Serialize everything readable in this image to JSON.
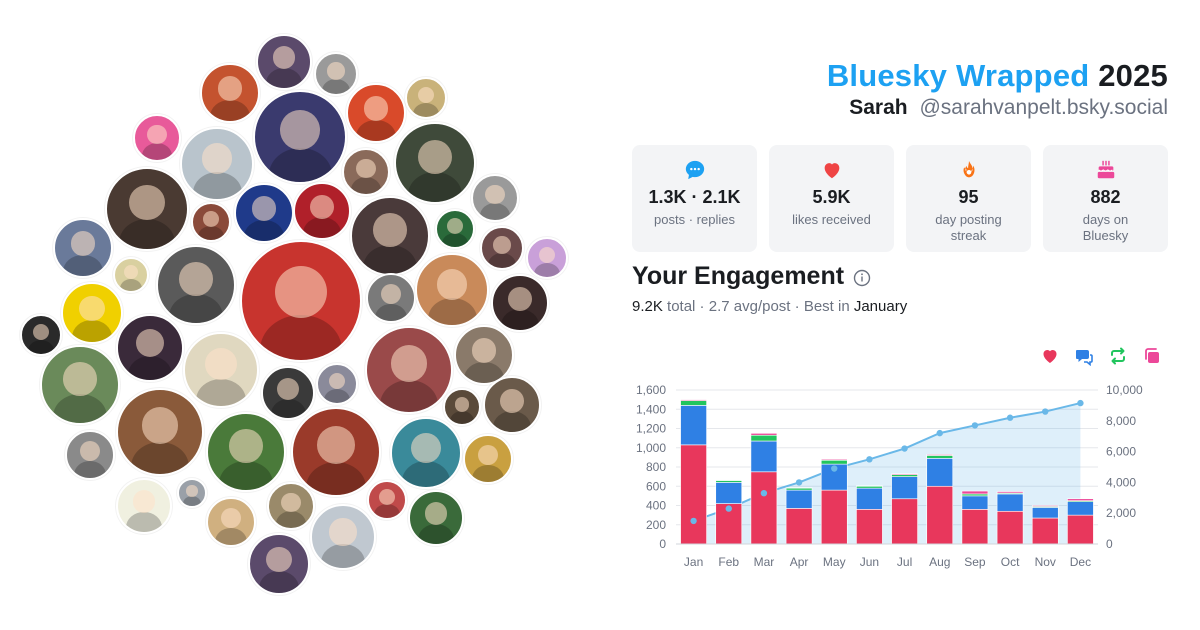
{
  "header": {
    "brand": "Bluesky Wrapped",
    "year": "2025",
    "name": "Sarah",
    "handle": "@sarahvanpelt.bsky.social"
  },
  "stats": [
    {
      "icon": "chat-bubble-icon",
      "value": "1.3K · 2.1K",
      "label": "posts · replies",
      "color": "#1da1f2"
    },
    {
      "icon": "heart-icon",
      "value": "5.9K",
      "label": "likes received",
      "color": "#ef4444"
    },
    {
      "icon": "flame-icon",
      "value": "95",
      "label": "day posting streak",
      "color": "#f97316"
    },
    {
      "icon": "cake-icon",
      "value": "882",
      "label": "days on Bluesky",
      "color": "#ec4899"
    }
  ],
  "engagement": {
    "title": "Your Engagement",
    "total": "9.2K",
    "total_word": "total",
    "avg": "2.7 avg/post",
    "best_prefix": "Best in",
    "best_month": "January",
    "legend": [
      {
        "icon": "heart-icon",
        "color": "#e8375c"
      },
      {
        "icon": "reply-icon",
        "color": "#2f80e4"
      },
      {
        "icon": "repost-icon",
        "color": "#22c55e"
      },
      {
        "icon": "quote-icon",
        "color": "#ec4899"
      }
    ]
  },
  "chart_data": {
    "type": "bar",
    "categories": [
      "Jan",
      "Feb",
      "Mar",
      "Apr",
      "May",
      "Jun",
      "Jul",
      "Aug",
      "Sep",
      "Oct",
      "Nov",
      "Dec"
    ],
    "series": [
      {
        "color": "#e8375c",
        "values": [
          1030,
          420,
          750,
          370,
          560,
          360,
          470,
          600,
          360,
          340,
          270,
          300
        ]
      },
      {
        "color": "#2f80e4",
        "values": [
          410,
          220,
          320,
          190,
          270,
          220,
          230,
          290,
          140,
          180,
          110,
          140
        ]
      },
      {
        "color": "#22c55e",
        "values": [
          50,
          20,
          60,
          20,
          40,
          20,
          20,
          30,
          20,
          10,
          10,
          10
        ]
      },
      {
        "color": "#ec4899",
        "values": [
          10,
          5,
          20,
          5,
          10,
          5,
          10,
          10,
          30,
          15,
          10,
          20
        ]
      }
    ],
    "line": {
      "color": "#6ab8e8",
      "values": [
        1500,
        2300,
        3300,
        4000,
        4900,
        5500,
        6200,
        7200,
        7700,
        8200,
        8600,
        9150
      ]
    },
    "ylim": [
      0,
      1600
    ],
    "yticks": [
      "0",
      "200",
      "400",
      "600",
      "800",
      "1,000",
      "1,200",
      "1,400",
      "1,600"
    ],
    "y2lim": [
      0,
      10000
    ],
    "y2ticks": [
      "0",
      "2,000",
      "4,000",
      "6,000",
      "8,000",
      "10,000"
    ],
    "grid": true
  },
  "collage": {
    "avatars": [
      {
        "name": "avatar-1",
        "color": "#5b4a6b"
      },
      {
        "name": "avatar-2",
        "color": "#9a9a9a"
      },
      {
        "name": "avatar-3",
        "color": "#c9b27a"
      },
      {
        "name": "avatar-4",
        "color": "#c4532f"
      },
      {
        "name": "avatar-5",
        "color": "#3a3a6e"
      },
      {
        "name": "avatar-6",
        "color": "#d94a2a"
      },
      {
        "name": "avatar-7",
        "color": "#e85a9a"
      },
      {
        "name": "avatar-8",
        "color": "#b9c4cc"
      },
      {
        "name": "avatar-9",
        "color": "#8a6a5a"
      },
      {
        "name": "avatar-10",
        "color": "#3f4a3a"
      },
      {
        "name": "avatar-11",
        "color": "#9a9a9a"
      },
      {
        "name": "avatar-12",
        "color": "#4a3a32"
      },
      {
        "name": "avatar-13",
        "color": "#8a4a3a"
      },
      {
        "name": "avatar-14",
        "color": "#1f3a8a"
      },
      {
        "name": "avatar-15",
        "color": "#b0202a"
      },
      {
        "name": "avatar-16",
        "color": "#4a3a3a"
      },
      {
        "name": "avatar-17",
        "color": "#2a6a3a"
      },
      {
        "name": "avatar-18",
        "color": "#6a7a9a"
      },
      {
        "name": "avatar-19",
        "color": "#d9d0a0"
      },
      {
        "name": "avatar-20",
        "color": "#5a5a5a"
      },
      {
        "name": "avatar-21",
        "color": "#c8342e"
      },
      {
        "name": "avatar-22",
        "color": "#7a7a7a"
      },
      {
        "name": "avatar-23",
        "color": "#c98a5a"
      },
      {
        "name": "avatar-24",
        "color": "#6a4a4a"
      },
      {
        "name": "avatar-25",
        "color": "#c9a0d9"
      },
      {
        "name": "avatar-26",
        "color": "#3a2a2a"
      },
      {
        "name": "avatar-27",
        "color": "#2a2a2a"
      },
      {
        "name": "avatar-28",
        "color": "#f0d000"
      },
      {
        "name": "avatar-29",
        "color": "#3a2a3a"
      },
      {
        "name": "avatar-30",
        "color": "#e0d8c0"
      },
      {
        "name": "avatar-31",
        "color": "#3a3a3a"
      },
      {
        "name": "avatar-32",
        "color": "#8a8a9a"
      },
      {
        "name": "avatar-33",
        "color": "#9a4a4a"
      },
      {
        "name": "avatar-34",
        "color": "#8a7a6a"
      },
      {
        "name": "avatar-35",
        "color": "#6a8a5a"
      },
      {
        "name": "avatar-36",
        "color": "#8a5a3a"
      },
      {
        "name": "avatar-37",
        "color": "#4a7a3a"
      },
      {
        "name": "avatar-38",
        "color": "#9a3a2a"
      },
      {
        "name": "avatar-39",
        "color": "#3a8a9a"
      },
      {
        "name": "avatar-40",
        "color": "#c9a040"
      },
      {
        "name": "avatar-41",
        "color": "#6a5a4a"
      },
      {
        "name": "avatar-42",
        "color": "#5a4a3a"
      },
      {
        "name": "avatar-43",
        "color": "#8a8a8a"
      },
      {
        "name": "avatar-44",
        "color": "#f0f0e0"
      },
      {
        "name": "avatar-45",
        "color": "#9aa0a8"
      },
      {
        "name": "avatar-46",
        "color": "#d0b080"
      },
      {
        "name": "avatar-47",
        "color": "#9a8a6a"
      },
      {
        "name": "avatar-48",
        "color": "#c04a4a"
      },
      {
        "name": "avatar-49",
        "color": "#3a6a3a"
      },
      {
        "name": "avatar-50",
        "color": "#c0c8d0"
      }
    ]
  }
}
